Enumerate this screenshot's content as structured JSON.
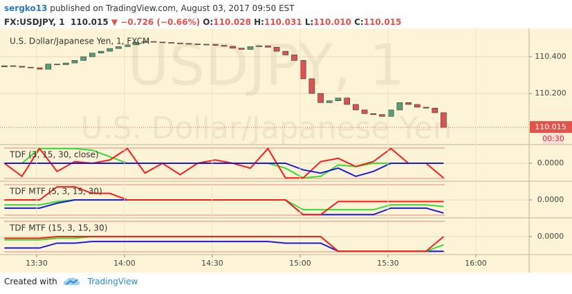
{
  "header": {
    "author": "sergko13",
    "published": " published on TradingView.com, August 03, 2017 09:50 EST",
    "symbol": "FX:USDJPY, 1",
    "last": "110.015",
    "change": "▼ −0.726 (−0.66%)",
    "o_label": "O:",
    "o": "110.028",
    "h_label": "H:",
    "h": "110.031",
    "l_label": "L:",
    "l": "110.010",
    "c_label": "C:",
    "c": "110.015"
  },
  "footer": {
    "created": "Created with",
    "brand": "TradingView"
  },
  "chart_data": [
    {
      "type": "candlestick",
      "title": "U.S. Dollar/Japanese Yen, 1, FXCM",
      "watermark": "USDJPY, 1",
      "watermark_subtitle": "U.S. Dollar/Japanese Yen",
      "x": [
        799,
        802,
        805,
        808,
        811,
        814,
        817,
        820,
        823,
        826,
        829,
        832,
        835,
        838,
        841,
        844,
        847,
        850,
        853,
        856,
        859,
        862,
        865,
        868,
        871,
        874,
        877,
        880,
        883,
        886,
        889,
        892,
        895,
        898,
        901,
        904,
        907,
        910,
        913,
        916,
        919,
        922,
        925,
        928,
        931,
        934,
        937,
        940,
        943,
        946,
        949
      ],
      "open": [
        110.345,
        110.351,
        110.348,
        110.343,
        110.34,
        110.332,
        110.36,
        110.357,
        110.366,
        110.38,
        110.4,
        110.42,
        110.43,
        110.445,
        110.455,
        110.465,
        110.478,
        110.483,
        110.48,
        110.478,
        110.475,
        110.472,
        110.47,
        110.468,
        110.468,
        110.462,
        110.457,
        110.447,
        110.44,
        110.455,
        110.46,
        110.452,
        110.43,
        110.41,
        110.38,
        110.28,
        110.2,
        110.15,
        110.16,
        110.175,
        110.14,
        110.11,
        110.09,
        110.085,
        110.075,
        110.11,
        110.15,
        110.14,
        110.125,
        110.12,
        110.095
      ],
      "close": [
        110.351,
        110.348,
        110.343,
        110.34,
        110.332,
        110.36,
        110.357,
        110.366,
        110.38,
        110.4,
        110.42,
        110.43,
        110.445,
        110.455,
        110.465,
        110.478,
        110.483,
        110.48,
        110.478,
        110.475,
        110.472,
        110.47,
        110.468,
        110.468,
        110.462,
        110.457,
        110.447,
        110.44,
        110.455,
        110.46,
        110.452,
        110.43,
        110.41,
        110.38,
        110.28,
        110.2,
        110.15,
        110.16,
        110.175,
        110.14,
        110.11,
        110.09,
        110.085,
        110.075,
        110.11,
        110.15,
        110.14,
        110.125,
        110.12,
        110.095,
        110.015
      ],
      "up_color": "#5a9e78",
      "down_color": "#d9534f",
      "last_color": "#e4524c",
      "xlim": [
        797.5,
        978.2
      ],
      "ylim": [
        109.925,
        110.551
      ],
      "yticks": [
        {
          "value": 110.4,
          "label": "110.400"
        },
        {
          "value": 110.2,
          "label": "110.200"
        }
      ],
      "last_label": "110.015",
      "countdown": "00:30"
    },
    {
      "type": "line",
      "title": "TDF (3, 15, 30, close)",
      "x": [
        799,
        805,
        811,
        817,
        823,
        829,
        835,
        841,
        847,
        853,
        859,
        865,
        871,
        877,
        883,
        889,
        895,
        901,
        907,
        913,
        919,
        925,
        931,
        937,
        943,
        949
      ],
      "xlim": [
        797.5,
        978.2
      ],
      "ylim": [
        -1.1,
        1.1
      ],
      "yticks": [
        {
          "value": 0,
          "label": "0.0000"
        }
      ],
      "series": [
        {
          "color": "#33dd33",
          "values": [
            0,
            0,
            0.9,
            0.9,
            0.9,
            0.8,
            0.4,
            0,
            0,
            0,
            0,
            0,
            0,
            0,
            0,
            0,
            -0.3,
            -0.9,
            -0.8,
            -0.1,
            -0.2,
            0,
            0,
            0,
            0,
            0
          ]
        },
        {
          "color": "#ff1a1a",
          "values": [
            0,
            -0.8,
            0.9,
            -0.5,
            0.1,
            0,
            0.2,
            0.9,
            -0.6,
            0,
            -0.7,
            0,
            0.2,
            0,
            -0.3,
            0.9,
            -0.9,
            -0.9,
            0.1,
            0.3,
            -0.2,
            0.1,
            0.9,
            0,
            0,
            -0.9
          ]
        },
        {
          "color": "#1a1add",
          "values": [
            0,
            0,
            0,
            0,
            0,
            0,
            0,
            0,
            0,
            0,
            0,
            0,
            0,
            0,
            0,
            0,
            0,
            -0.4,
            -0.6,
            -0.3,
            -0.8,
            -0.5,
            0,
            0,
            0,
            0
          ]
        }
      ]
    },
    {
      "type": "line",
      "title": "TDF MTF (5, 3, 15, 30)",
      "x": [
        799,
        805,
        811,
        817,
        823,
        829,
        835,
        841,
        847,
        853,
        859,
        865,
        871,
        877,
        883,
        889,
        895,
        901,
        907,
        913,
        919,
        925,
        931,
        937,
        943,
        949
      ],
      "xlim": [
        797.5,
        978.2
      ],
      "ylim": [
        -1.1,
        1.1
      ],
      "yticks": [
        {
          "value": 0,
          "label": "0.0000"
        }
      ],
      "series": [
        {
          "color": "#33dd33",
          "values": [
            -0.3,
            -0.3,
            -0.3,
            -0.1,
            0,
            0,
            0,
            0,
            0,
            0,
            0,
            0,
            0,
            0,
            0,
            0,
            0,
            -0.6,
            -0.6,
            -0.6,
            -0.6,
            -0.6,
            -0.3,
            -0.3,
            -0.3,
            -0.4
          ]
        },
        {
          "color": "#1a1add",
          "values": [
            -0.5,
            -0.5,
            -0.5,
            -0.2,
            0,
            0,
            0,
            0,
            0,
            0,
            0,
            0,
            0,
            0,
            0,
            0,
            0,
            -0.9,
            -0.9,
            -0.9,
            -0.9,
            -0.9,
            -0.5,
            -0.5,
            -0.5,
            -0.8
          ]
        },
        {
          "color": "#ff1a1a",
          "values": [
            0,
            0,
            0,
            0.8,
            0.8,
            0.4,
            0.4,
            0,
            0,
            0,
            0,
            0,
            0,
            0,
            0,
            0,
            0,
            -0.9,
            -0.9,
            -0.1,
            -0.1,
            -0.1,
            -0.1,
            -0.1,
            -0.1,
            -0.1
          ]
        }
      ]
    },
    {
      "type": "line",
      "title": "TDF MTF (15, 3, 15, 30)",
      "x": [
        799,
        805,
        811,
        817,
        823,
        829,
        835,
        841,
        847,
        853,
        859,
        865,
        871,
        877,
        883,
        889,
        895,
        901,
        907,
        913,
        919,
        925,
        931,
        937,
        943,
        949
      ],
      "xlim": [
        797.5,
        978.2
      ],
      "ylim": [
        -1.1,
        1.1
      ],
      "yticks": [
        {
          "value": 0,
          "label": "0.0000"
        }
      ],
      "xticks": [
        {
          "value": 810,
          "label": "13:30"
        },
        {
          "value": 840,
          "label": "14:00"
        },
        {
          "value": 870,
          "label": "14:30"
        },
        {
          "value": 900,
          "label": "15:00"
        },
        {
          "value": 930,
          "label": "15:30"
        },
        {
          "value": 960,
          "label": "16:00"
        }
      ],
      "series": [
        {
          "color": "#1a1add",
          "values": [
            -0.7,
            -0.7,
            -0.7,
            -0.4,
            -0.4,
            -0.3,
            -0.3,
            -0.3,
            -0.3,
            -0.3,
            -0.3,
            -0.3,
            -0.3,
            -0.3,
            -0.3,
            -0.3,
            -0.4,
            -0.4,
            -0.4,
            -0.9,
            -0.9,
            -0.9,
            -0.9,
            -0.9,
            -0.9,
            -0.9
          ]
        },
        {
          "color": "#33dd33",
          "values": [
            -0.2,
            -0.2,
            -0.2,
            -0.1,
            -0.1,
            0,
            0,
            0,
            0,
            0,
            0,
            0,
            0,
            0,
            0,
            0,
            0,
            0,
            0,
            -0.9,
            -0.9,
            -0.9,
            -0.9,
            -0.9,
            -0.9,
            -0.5
          ]
        },
        {
          "color": "#ff1a1a",
          "values": [
            -0.1,
            -0.1,
            -0.1,
            0,
            0,
            0,
            0,
            0,
            0,
            0,
            0,
            0,
            0,
            0,
            0,
            0,
            0,
            0,
            0,
            -0.9,
            -0.9,
            -0.9,
            -0.9,
            -0.9,
            -0.9,
            0
          ]
        }
      ]
    }
  ]
}
